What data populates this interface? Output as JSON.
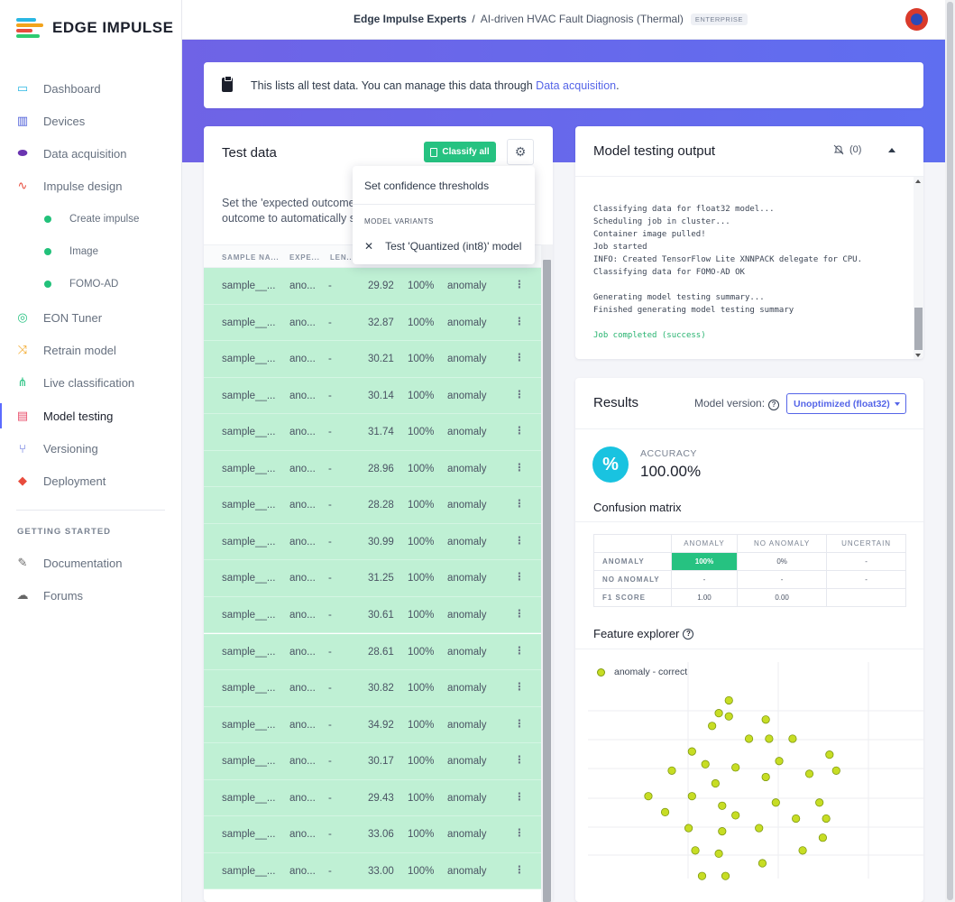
{
  "app": {
    "name": "EDGE IMPULSE",
    "brand_colors": [
      "#2ab7e3",
      "#f2a31b",
      "#e84c3d",
      "#2ecc71"
    ]
  },
  "sidebar": {
    "items": [
      {
        "label": "Dashboard",
        "icon": "monitor-icon"
      },
      {
        "label": "Devices",
        "icon": "chip-icon"
      },
      {
        "label": "Data acquisition",
        "icon": "database-icon"
      },
      {
        "label": "Impulse design",
        "icon": "pulse-icon"
      },
      {
        "label": "Create impulse",
        "icon": "dot-icon"
      },
      {
        "label": "Image",
        "icon": "dot-icon"
      },
      {
        "label": "FOMO-AD",
        "icon": "dot-icon"
      },
      {
        "label": "EON Tuner",
        "icon": "compass-icon"
      },
      {
        "label": "Retrain model",
        "icon": "shuffle-icon"
      },
      {
        "label": "Live classification",
        "icon": "nodes-icon"
      },
      {
        "label": "Model testing",
        "icon": "clipboard-icon"
      },
      {
        "label": "Versioning",
        "icon": "branch-icon"
      },
      {
        "label": "Deployment",
        "icon": "box-icon"
      },
      {
        "label": "Documentation",
        "icon": "book-icon"
      },
      {
        "label": "Forums",
        "icon": "chat-icon"
      }
    ],
    "section": "GETTING STARTED",
    "active": "Model testing"
  },
  "topbar": {
    "project_owner": "Edge Impulse Experts",
    "separator": "/",
    "project_name": "AI-driven HVAC Fault Diagnosis (Thermal)",
    "badge": "ENTERPRISE"
  },
  "info": {
    "text": "This lists all test data. You can manage this data through ",
    "link": "Data acquisition",
    "suffix": "."
  },
  "test_data": {
    "title": "Test data",
    "classify_label": "Classify all",
    "description_line1": "Set the 'expected outcome' for each sample to the desired",
    "description_line2": "outcome to automatically score the impulse.",
    "columns": [
      "SAMPLE NA...",
      "EXPE...",
      "LEN..."
    ],
    "rows": [
      {
        "name": "sample__...",
        "expected": "ano...",
        "length": "-",
        "score": "29.92",
        "pct": "100%",
        "result": "anomaly"
      },
      {
        "name": "sample__...",
        "expected": "ano...",
        "length": "-",
        "score": "32.87",
        "pct": "100%",
        "result": "anomaly"
      },
      {
        "name": "sample__...",
        "expected": "ano...",
        "length": "-",
        "score": "30.21",
        "pct": "100%",
        "result": "anomaly"
      },
      {
        "name": "sample__...",
        "expected": "ano...",
        "length": "-",
        "score": "30.14",
        "pct": "100%",
        "result": "anomaly"
      },
      {
        "name": "sample__...",
        "expected": "ano...",
        "length": "-",
        "score": "31.74",
        "pct": "100%",
        "result": "anomaly"
      },
      {
        "name": "sample__...",
        "expected": "ano...",
        "length": "-",
        "score": "28.96",
        "pct": "100%",
        "result": "anomaly"
      },
      {
        "name": "sample__...",
        "expected": "ano...",
        "length": "-",
        "score": "28.28",
        "pct": "100%",
        "result": "anomaly"
      },
      {
        "name": "sample__...",
        "expected": "ano...",
        "length": "-",
        "score": "30.99",
        "pct": "100%",
        "result": "anomaly"
      },
      {
        "name": "sample__...",
        "expected": "ano...",
        "length": "-",
        "score": "31.25",
        "pct": "100%",
        "result": "anomaly"
      },
      {
        "name": "sample__...",
        "expected": "ano...",
        "length": "-",
        "score": "30.61",
        "pct": "100%",
        "result": "anomaly"
      },
      {
        "name": "sample__...",
        "expected": "ano...",
        "length": "-",
        "score": "28.61",
        "pct": "100%",
        "result": "anomaly"
      },
      {
        "name": "sample__...",
        "expected": "ano...",
        "length": "-",
        "score": "30.82",
        "pct": "100%",
        "result": "anomaly"
      },
      {
        "name": "sample__...",
        "expected": "ano...",
        "length": "-",
        "score": "34.92",
        "pct": "100%",
        "result": "anomaly"
      },
      {
        "name": "sample__...",
        "expected": "ano...",
        "length": "-",
        "score": "30.17",
        "pct": "100%",
        "result": "anomaly"
      },
      {
        "name": "sample__...",
        "expected": "ano...",
        "length": "-",
        "score": "29.43",
        "pct": "100%",
        "result": "anomaly"
      },
      {
        "name": "sample__...",
        "expected": "ano...",
        "length": "-",
        "score": "33.06",
        "pct": "100%",
        "result": "anomaly"
      },
      {
        "name": "sample__...",
        "expected": "ano...",
        "length": "-",
        "score": "33.00",
        "pct": "100%",
        "result": "anomaly"
      }
    ]
  },
  "dropdown": {
    "item_thresholds": "Set confidence thresholds",
    "section": "MODEL VARIANTS",
    "item_variant": "Test 'Quantized (int8)' model"
  },
  "output": {
    "title": "Model testing output",
    "notifications": "(0)",
    "log": [
      "Classifying data for float32 model...",
      "Scheduling job in cluster...",
      "Container image pulled!",
      "Job started",
      "INFO: Created TensorFlow Lite XNNPACK delegate for CPU.",
      "Classifying data for FOMO-AD OK",
      "",
      "Generating model testing summary...",
      "Finished generating model testing summary",
      ""
    ],
    "success": "Job completed (success)"
  },
  "results": {
    "title": "Results",
    "model_version_label": "Model version:",
    "model_version_value": "Unoptimized (float32)",
    "accuracy_label": "ACCURACY",
    "accuracy_value": "100.00%",
    "accuracy_symbol": "%",
    "confusion_title": "Confusion matrix",
    "cm_columns": [
      "ANOMALY",
      "NO ANOMALY",
      "UNCERTAIN"
    ],
    "cm_rows": [
      {
        "label": "ANOMALY",
        "cells": [
          "100%",
          "0%",
          "-"
        ]
      },
      {
        "label": "NO ANOMALY",
        "cells": [
          "-",
          "-",
          "-"
        ]
      },
      {
        "label": "F1 SCORE",
        "cells": [
          "1.00",
          "0.00",
          ""
        ]
      }
    ],
    "feature_title": "Feature explorer",
    "legend": "anomaly - correct"
  },
  "chart_data": {
    "type": "scatter",
    "series": [
      {
        "name": "anomaly - correct",
        "color": "#c7dd24",
        "points": [
          [
            0.42,
            0.12
          ],
          [
            0.39,
            0.16
          ],
          [
            0.42,
            0.17
          ],
          [
            0.37,
            0.2
          ],
          [
            0.48,
            0.24
          ],
          [
            0.31,
            0.28
          ],
          [
            0.25,
            0.34
          ],
          [
            0.35,
            0.32
          ],
          [
            0.44,
            0.33
          ],
          [
            0.53,
            0.18
          ],
          [
            0.54,
            0.24
          ],
          [
            0.61,
            0.24
          ],
          [
            0.57,
            0.31
          ],
          [
            0.53,
            0.36
          ],
          [
            0.66,
            0.35
          ],
          [
            0.72,
            0.29
          ],
          [
            0.74,
            0.34
          ],
          [
            0.18,
            0.42
          ],
          [
            0.23,
            0.47
          ],
          [
            0.31,
            0.42
          ],
          [
            0.38,
            0.38
          ],
          [
            0.4,
            0.45
          ],
          [
            0.44,
            0.48
          ],
          [
            0.3,
            0.52
          ],
          [
            0.4,
            0.53
          ],
          [
            0.51,
            0.52
          ],
          [
            0.56,
            0.44
          ],
          [
            0.62,
            0.49
          ],
          [
            0.69,
            0.44
          ],
          [
            0.71,
            0.49
          ],
          [
            0.7,
            0.55
          ],
          [
            0.64,
            0.59
          ],
          [
            0.32,
            0.59
          ],
          [
            0.39,
            0.6
          ],
          [
            0.52,
            0.63
          ],
          [
            0.34,
            0.67
          ],
          [
            0.41,
            0.67
          ]
        ]
      }
    ]
  }
}
